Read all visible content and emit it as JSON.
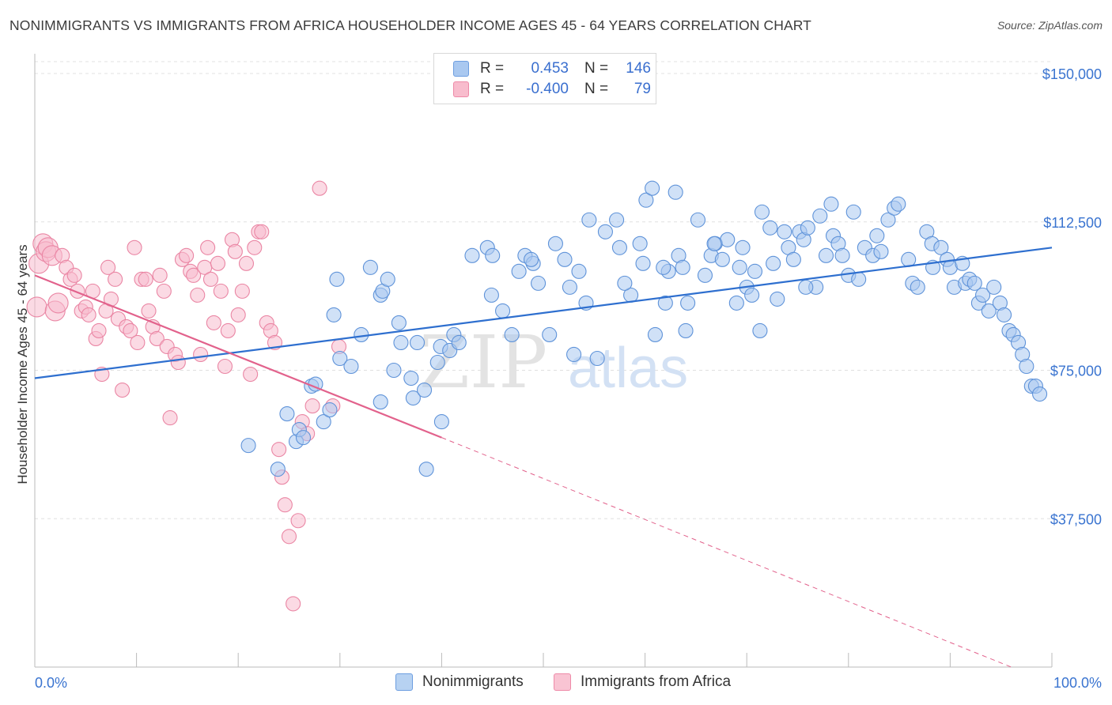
{
  "title": "NONIMMIGRANTS VS IMMIGRANTS FROM AFRICA HOUSEHOLDER INCOME AGES 45 - 64 YEARS CORRELATION CHART",
  "source": "Source: ZipAtlas.com",
  "legend_top": [
    {
      "r_label": "R =",
      "r_value": "0.453",
      "n_label": "N =",
      "n_value": "146",
      "color": "#a9c8f0",
      "border": "#6d9ee0"
    },
    {
      "r_label": "R =",
      "r_value": "-0.400",
      "n_label": "N =",
      "n_value": "79",
      "color": "#f8bccd",
      "border": "#ee8aa8"
    }
  ],
  "legend_bottom": [
    {
      "label": "Nonimmigrants",
      "color": "#b7d2f2",
      "border": "#6d9ee0"
    },
    {
      "label": "Immigrants from Africa",
      "color": "#f9c4d3",
      "border": "#ee8aa8"
    }
  ],
  "watermark": {
    "zip": "ZIP",
    "atlas": "atlas"
  },
  "chart_data": {
    "type": "scatter",
    "xlabel": "",
    "ylabel": "Householder Income Ages 45 - 64 years",
    "xlim": [
      0,
      100
    ],
    "ylim": [
      0,
      153000
    ],
    "x_tick_labels": [
      "0.0%",
      "100.0%"
    ],
    "y_ticks": [
      37500,
      75000,
      112500,
      150000
    ],
    "y_tick_labels": [
      "$37,500",
      "$75,000",
      "$112,500",
      "$150,000"
    ],
    "grid": true,
    "colors": {
      "blue_fill": "#a9c8f0",
      "blue_stroke": "#5f93d9",
      "blue_line": "#2e6fcf",
      "pink_fill": "#f8bccd",
      "pink_stroke": "#ea86a4",
      "pink_line": "#e2628c",
      "tick_label": "#3a74d0"
    },
    "series": [
      {
        "name": "Nonimmigrants",
        "trend": {
          "x0": 0,
          "y0": 73000,
          "x1": 100,
          "y1": 106000,
          "dash_from": null
        },
        "points": [
          [
            21.0,
            56000
          ],
          [
            23.9,
            50000
          ],
          [
            24.8,
            64000
          ],
          [
            25.7,
            57000
          ],
          [
            26.0,
            60000
          ],
          [
            26.4,
            58000
          ],
          [
            27.2,
            71000
          ],
          [
            27.6,
            71500
          ],
          [
            28.4,
            62000
          ],
          [
            29.0,
            65000
          ],
          [
            29.4,
            89000
          ],
          [
            29.7,
            98000
          ],
          [
            30.0,
            78000
          ],
          [
            31.1,
            76000
          ],
          [
            32.1,
            84000
          ],
          [
            33.0,
            101000
          ],
          [
            34.0,
            67000
          ],
          [
            34.0,
            94000
          ],
          [
            34.2,
            95000
          ],
          [
            34.7,
            98000
          ],
          [
            35.3,
            75000
          ],
          [
            35.8,
            87000
          ],
          [
            36.0,
            82000
          ],
          [
            37.0,
            73000
          ],
          [
            37.2,
            68000
          ],
          [
            37.6,
            82000
          ],
          [
            38.3,
            70000
          ],
          [
            38.5,
            50000
          ],
          [
            39.6,
            77000
          ],
          [
            39.9,
            81000
          ],
          [
            40.0,
            62000
          ],
          [
            40.8,
            80000
          ],
          [
            41.2,
            84000
          ],
          [
            41.7,
            82000
          ],
          [
            43.0,
            104000
          ],
          [
            44.5,
            106000
          ],
          [
            45.0,
            104000
          ],
          [
            46.0,
            90000
          ],
          [
            46.9,
            84000
          ],
          [
            47.6,
            100000
          ],
          [
            48.2,
            104000
          ],
          [
            49.0,
            102000
          ],
          [
            49.5,
            97000
          ],
          [
            51.2,
            107000
          ],
          [
            52.6,
            96000
          ],
          [
            53.0,
            79000
          ],
          [
            53.5,
            100000
          ],
          [
            54.2,
            92000
          ],
          [
            54.5,
            113000
          ],
          [
            55.3,
            78000
          ],
          [
            56.1,
            110000
          ],
          [
            57.2,
            113000
          ],
          [
            57.5,
            106000
          ],
          [
            58.6,
            94000
          ],
          [
            59.5,
            107000
          ],
          [
            59.8,
            102000
          ],
          [
            60.1,
            118000
          ],
          [
            60.7,
            121000
          ],
          [
            61.0,
            84000
          ],
          [
            62.0,
            92000
          ],
          [
            62.3,
            100000
          ],
          [
            63.3,
            104000
          ],
          [
            63.7,
            101000
          ],
          [
            64.0,
            85000
          ],
          [
            64.2,
            92000
          ],
          [
            65.2,
            113000
          ],
          [
            65.9,
            99000
          ],
          [
            66.5,
            104000
          ],
          [
            66.9,
            107000
          ],
          [
            67.6,
            103000
          ],
          [
            68.1,
            108000
          ],
          [
            69.0,
            92000
          ],
          [
            69.3,
            101000
          ],
          [
            70.0,
            96000
          ],
          [
            70.5,
            94000
          ],
          [
            70.8,
            100000
          ],
          [
            71.3,
            85000
          ],
          [
            71.5,
            115000
          ],
          [
            72.3,
            111000
          ],
          [
            72.6,
            102000
          ],
          [
            73.0,
            93000
          ],
          [
            73.7,
            110000
          ],
          [
            74.1,
            106000
          ],
          [
            74.6,
            103000
          ],
          [
            75.2,
            110000
          ],
          [
            75.6,
            108000
          ],
          [
            76.0,
            111000
          ],
          [
            76.8,
            96000
          ],
          [
            77.2,
            114000
          ],
          [
            77.8,
            104000
          ],
          [
            78.3,
            117000
          ],
          [
            78.5,
            109000
          ],
          [
            79.0,
            107000
          ],
          [
            79.4,
            104000
          ],
          [
            80.0,
            99000
          ],
          [
            80.5,
            115000
          ],
          [
            81.0,
            98000
          ],
          [
            81.6,
            106000
          ],
          [
            82.4,
            104000
          ],
          [
            82.8,
            109000
          ],
          [
            83.2,
            105000
          ],
          [
            83.9,
            113000
          ],
          [
            84.5,
            116000
          ],
          [
            84.9,
            117000
          ],
          [
            85.9,
            103000
          ],
          [
            86.3,
            97000
          ],
          [
            86.8,
            96000
          ],
          [
            87.7,
            110000
          ],
          [
            88.2,
            107000
          ],
          [
            88.3,
            101000
          ],
          [
            89.1,
            106000
          ],
          [
            89.7,
            103000
          ],
          [
            90.0,
            101000
          ],
          [
            90.4,
            96000
          ],
          [
            91.2,
            102000
          ],
          [
            91.5,
            97000
          ],
          [
            91.9,
            98000
          ],
          [
            92.4,
            97000
          ],
          [
            92.8,
            92000
          ],
          [
            93.2,
            94000
          ],
          [
            93.8,
            90000
          ],
          [
            94.3,
            96000
          ],
          [
            94.9,
            92000
          ],
          [
            95.3,
            89000
          ],
          [
            95.8,
            85000
          ],
          [
            96.2,
            84000
          ],
          [
            96.7,
            82000
          ],
          [
            97.1,
            79000
          ],
          [
            97.5,
            76000
          ],
          [
            98.0,
            71000
          ],
          [
            98.4,
            71000
          ],
          [
            98.8,
            69000
          ],
          [
            75.8,
            96000
          ],
          [
            48.8,
            103000
          ],
          [
            69.6,
            106000
          ],
          [
            58.0,
            97000
          ],
          [
            50.6,
            84000
          ],
          [
            52.1,
            103000
          ],
          [
            61.8,
            101000
          ],
          [
            66.8,
            107000
          ],
          [
            44.9,
            94000
          ],
          [
            63.0,
            120000
          ]
        ]
      },
      {
        "name": "Immigrants from Africa",
        "trend": {
          "x0": 0,
          "y0": 99000,
          "x1": 40,
          "y1": 58000,
          "dash_from": 40,
          "dash_to": 96,
          "dash_y_to": 0
        },
        "points": [
          [
            0.2,
            91000
          ],
          [
            0.4,
            102000
          ],
          [
            0.8,
            107000
          ],
          [
            1.1,
            105000
          ],
          [
            1.3,
            106000
          ],
          [
            1.7,
            104000
          ],
          [
            2.0,
            90000
          ],
          [
            2.3,
            92000
          ],
          [
            2.7,
            104000
          ],
          [
            3.1,
            101000
          ],
          [
            3.5,
            98000
          ],
          [
            3.9,
            99000
          ],
          [
            4.2,
            95000
          ],
          [
            4.6,
            90000
          ],
          [
            5.0,
            91000
          ],
          [
            5.3,
            89000
          ],
          [
            5.7,
            95000
          ],
          [
            6.0,
            83000
          ],
          [
            6.3,
            85000
          ],
          [
            6.6,
            74000
          ],
          [
            7.0,
            90000
          ],
          [
            7.2,
            101000
          ],
          [
            7.5,
            93000
          ],
          [
            7.9,
            98000
          ],
          [
            8.2,
            88000
          ],
          [
            8.6,
            70000
          ],
          [
            9.0,
            86000
          ],
          [
            9.4,
            85000
          ],
          [
            9.8,
            106000
          ],
          [
            10.1,
            82000
          ],
          [
            10.5,
            98000
          ],
          [
            10.9,
            98000
          ],
          [
            11.2,
            90000
          ],
          [
            11.6,
            86000
          ],
          [
            12.0,
            83000
          ],
          [
            12.3,
            99000
          ],
          [
            12.7,
            95000
          ],
          [
            13.0,
            81000
          ],
          [
            13.3,
            63000
          ],
          [
            13.8,
            79000
          ],
          [
            14.1,
            77000
          ],
          [
            14.5,
            103000
          ],
          [
            14.9,
            104000
          ],
          [
            15.3,
            100000
          ],
          [
            15.6,
            99000
          ],
          [
            16.0,
            94000
          ],
          [
            16.3,
            79000
          ],
          [
            16.7,
            101000
          ],
          [
            17.0,
            106000
          ],
          [
            17.3,
            98000
          ],
          [
            17.6,
            87000
          ],
          [
            18.0,
            102000
          ],
          [
            18.3,
            95000
          ],
          [
            18.7,
            76000
          ],
          [
            19.0,
            85000
          ],
          [
            19.4,
            108000
          ],
          [
            19.7,
            105000
          ],
          [
            20.0,
            89000
          ],
          [
            20.4,
            95000
          ],
          [
            20.8,
            102000
          ],
          [
            21.2,
            74000
          ],
          [
            21.6,
            106000
          ],
          [
            22.0,
            110000
          ],
          [
            22.3,
            110000
          ],
          [
            22.8,
            87000
          ],
          [
            23.2,
            85000
          ],
          [
            23.6,
            82000
          ],
          [
            24.0,
            55000
          ],
          [
            24.3,
            48000
          ],
          [
            24.6,
            41000
          ],
          [
            25.0,
            33000
          ],
          [
            25.4,
            16000
          ],
          [
            25.9,
            37000
          ],
          [
            26.3,
            62000
          ],
          [
            26.8,
            59000
          ],
          [
            27.3,
            66000
          ],
          [
            28.0,
            121000
          ],
          [
            29.3,
            66000
          ],
          [
            29.9,
            81000
          ]
        ]
      }
    ]
  }
}
